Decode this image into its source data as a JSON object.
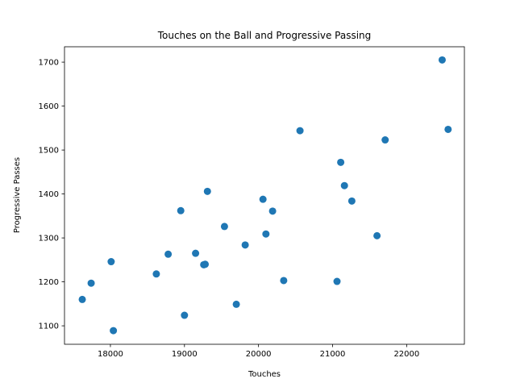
{
  "chart_data": {
    "type": "scatter",
    "title": "Touches on the Ball and Progressive Passing",
    "xlabel": "Touches",
    "ylabel": "Progressive Passes",
    "xlim": [
      17380,
      22780
    ],
    "ylim": [
      1058,
      1735
    ],
    "xticks": [
      18000,
      19000,
      20000,
      21000,
      22000
    ],
    "yticks": [
      1100,
      1200,
      1300,
      1400,
      1500,
      1600,
      1700
    ],
    "grid": false,
    "marker_color": "#1f77b4",
    "points": [
      {
        "x": 17620,
        "y": 1160
      },
      {
        "x": 17740,
        "y": 1197
      },
      {
        "x": 18010,
        "y": 1246
      },
      {
        "x": 18040,
        "y": 1089
      },
      {
        "x": 18620,
        "y": 1218
      },
      {
        "x": 18780,
        "y": 1263
      },
      {
        "x": 18950,
        "y": 1362
      },
      {
        "x": 19000,
        "y": 1124
      },
      {
        "x": 19150,
        "y": 1265
      },
      {
        "x": 19260,
        "y": 1239
      },
      {
        "x": 19280,
        "y": 1240
      },
      {
        "x": 19310,
        "y": 1406
      },
      {
        "x": 19540,
        "y": 1326
      },
      {
        "x": 19700,
        "y": 1149
      },
      {
        "x": 19820,
        "y": 1284
      },
      {
        "x": 20060,
        "y": 1388
      },
      {
        "x": 20100,
        "y": 1309
      },
      {
        "x": 20190,
        "y": 1361
      },
      {
        "x": 20340,
        "y": 1203
      },
      {
        "x": 20560,
        "y": 1544
      },
      {
        "x": 21060,
        "y": 1201
      },
      {
        "x": 21110,
        "y": 1472
      },
      {
        "x": 21160,
        "y": 1419
      },
      {
        "x": 21260,
        "y": 1384
      },
      {
        "x": 21600,
        "y": 1305
      },
      {
        "x": 21710,
        "y": 1523
      },
      {
        "x": 22480,
        "y": 1705
      },
      {
        "x": 22560,
        "y": 1547
      }
    ]
  }
}
